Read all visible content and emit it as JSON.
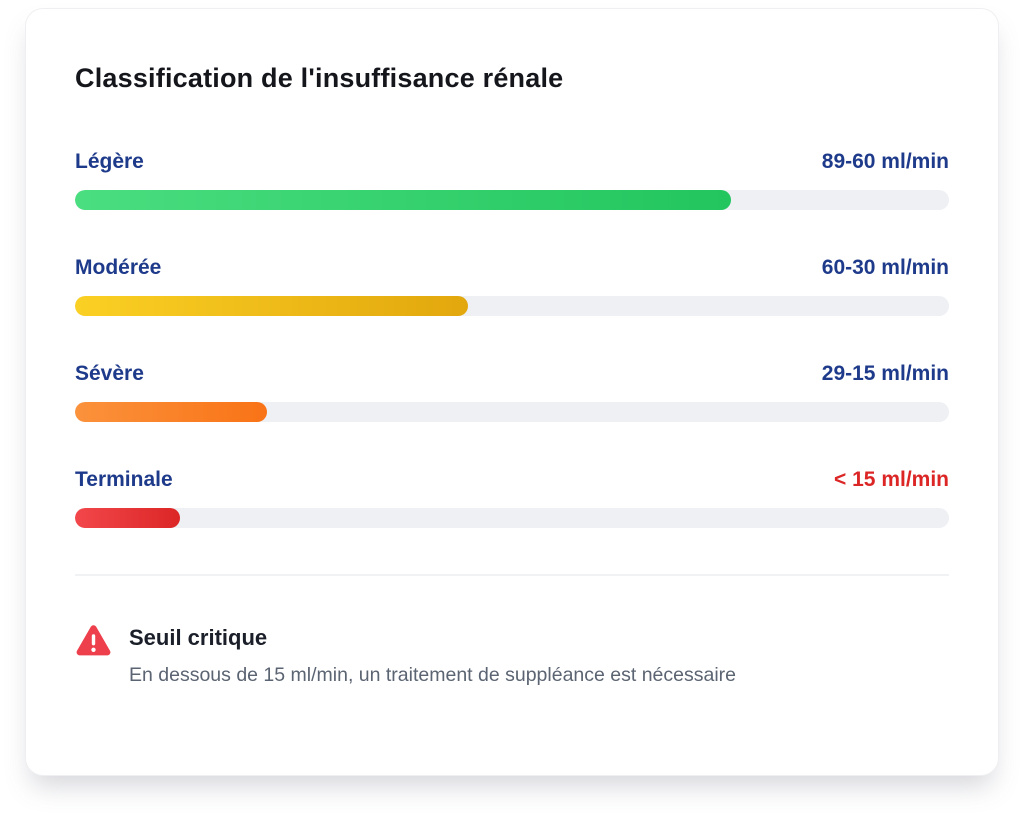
{
  "card": {
    "title": "Classification de l'insuffisance rénale"
  },
  "chart_data": {
    "type": "bar",
    "orientation": "horizontal",
    "title": "Classification de l'insuffisance rénale",
    "categories": [
      "Légère",
      "Modérée",
      "Sévère",
      "Terminale"
    ],
    "tick_labels": [
      "89-60 ml/min",
      "60-30 ml/min",
      "29-15 ml/min",
      "< 15 ml/min"
    ],
    "series": [
      {
        "name": "fill_percent_of_track",
        "values": [
          75,
          45,
          22,
          12
        ]
      }
    ],
    "xlim": [
      0,
      100
    ],
    "grid": false,
    "legend": false
  },
  "rows": [
    {
      "label": "Légère",
      "value": "89-60 ml/min",
      "value_color": "#1e3a8a",
      "fill_percent": 75,
      "bar_color_start": "#4ade80",
      "bar_color_end": "#22c55e"
    },
    {
      "label": "Modérée",
      "value": "60-30 ml/min",
      "value_color": "#1e3a8a",
      "fill_percent": 45,
      "bar_color_start": "#fbd024",
      "bar_color_end": "#e2a70d"
    },
    {
      "label": "Sévère",
      "value": "29-15 ml/min",
      "value_color": "#1e3a8a",
      "fill_percent": 22,
      "bar_color_start": "#fb923c",
      "bar_color_end": "#f97316"
    },
    {
      "label": "Terminale",
      "value": "< 15 ml/min",
      "value_color": "#dc2626",
      "fill_percent": 12,
      "bar_color_start": "#f2474b",
      "bar_color_end": "#dc2626"
    }
  ],
  "footer": {
    "icon": "warning-triangle-icon",
    "title": "Seuil critique",
    "description": "En dessous de 15 ml/min, un traitement de suppléance est nécessaire"
  },
  "colors": {
    "label_blue": "#1e3a8a",
    "critical_red": "#dc2626",
    "track_gray": "#eef0f3",
    "warning_icon_red": "#ee404c"
  }
}
